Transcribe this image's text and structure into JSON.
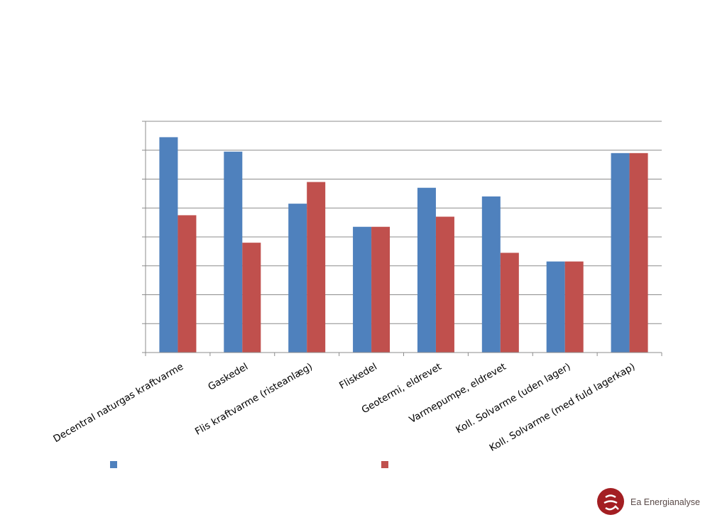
{
  "chart_data": {
    "type": "bar",
    "categories": [
      "Decentral naturgas kraftvarme",
      "Gaskedel",
      "Flis kraftvarme (risteanlæg)",
      "Fliskedel",
      "Geotermi, eldrevet",
      "Varmepumpe, eldrevet",
      "Koll. Solvarme (uden lager)",
      "Koll. Solvarme (med fuld lagerkap)"
    ],
    "series": [
      {
        "color": "#4F81BD",
        "values": [
          7.45,
          6.95,
          5.15,
          4.35,
          5.7,
          5.4,
          3.15,
          6.9
        ]
      },
      {
        "color": "#C0504D",
        "values": [
          4.75,
          3.8,
          5.9,
          4.35,
          4.7,
          3.45,
          3.15,
          6.9
        ]
      }
    ],
    "ylim": [
      0,
      8
    ],
    "yticks": [
      0,
      1,
      2,
      3,
      4,
      5,
      6,
      7,
      8
    ],
    "grid": true,
    "legend": "bottom"
  },
  "logo": {
    "text": "Ea Energianalyse",
    "color": "#A31E22"
  }
}
